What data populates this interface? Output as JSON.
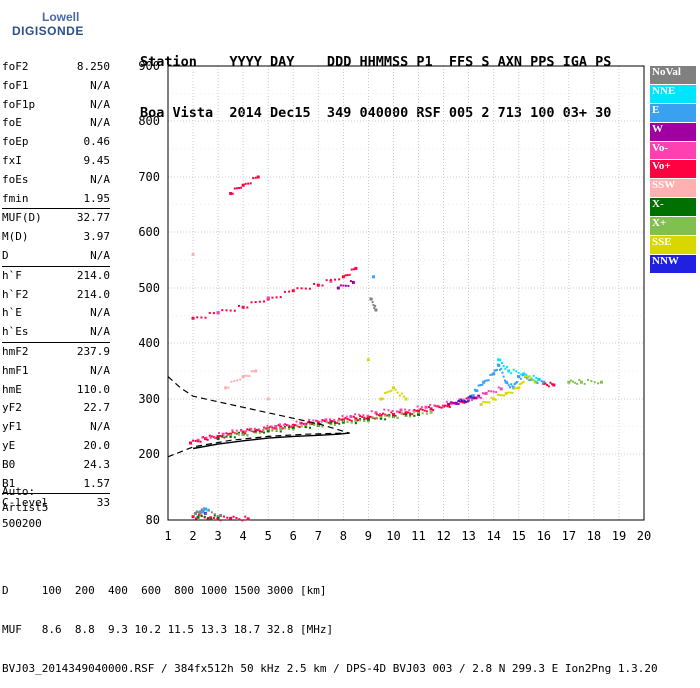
{
  "logo": {
    "line1": "Lowell",
    "line2": "DIGISONDE"
  },
  "header": {
    "line1": "Station    YYYY DAY    DDD HHMMSS P1  FFS S AXN PPS IGA PS",
    "line2": "Boa Vista  2014 Dec15  349 040000 RSF 005 2 713 100 03+ 30"
  },
  "params": {
    "group1": [
      {
        "label": "foF2",
        "value": "8.250"
      },
      {
        "label": "foF1",
        "value": "N/A"
      },
      {
        "label": "foF1p",
        "value": "N/A"
      },
      {
        "label": "foE",
        "value": "N/A"
      },
      {
        "label": "foEp",
        "value": "0.46"
      },
      {
        "label": "fxI",
        "value": "9.45"
      },
      {
        "label": "foEs",
        "value": "N/A"
      },
      {
        "label": "fmin",
        "value": "1.95"
      }
    ],
    "group2": [
      {
        "label": "MUF(D)",
        "value": "32.77"
      },
      {
        "label": "M(D)",
        "value": "3.97"
      },
      {
        "label": "D",
        "value": "N/A"
      }
    ],
    "group3": [
      {
        "label": "h`F",
        "value": "214.0"
      },
      {
        "label": "h`F2",
        "value": "214.0"
      },
      {
        "label": "h`E",
        "value": "N/A"
      },
      {
        "label": "h`Es",
        "value": "N/A"
      }
    ],
    "group4": [
      {
        "label": "hmF2",
        "value": "237.9"
      },
      {
        "label": "hmF1",
        "value": "N/A"
      },
      {
        "label": "hmE",
        "value": "110.0"
      },
      {
        "label": "yF2",
        "value": "22.7"
      },
      {
        "label": "yF1",
        "value": "N/A"
      },
      {
        "label": "yE",
        "value": "20.0"
      },
      {
        "label": "B0",
        "value": "24.3"
      },
      {
        "label": "B1",
        "value": "1.57"
      }
    ],
    "group5": [
      {
        "label": "C-level",
        "value": "33"
      }
    ]
  },
  "auto": {
    "line1": "Auto:",
    "line2": "Artist5",
    "line3": "500200"
  },
  "legend": [
    {
      "label": "NoVal",
      "color": "#808080"
    },
    {
      "label": "NNE",
      "color": "#00e5ff"
    },
    {
      "label": "E",
      "color": "#3aa0f0"
    },
    {
      "label": "W",
      "color": "#a000a0"
    },
    {
      "label": "Vo-",
      "color": "#ff40b0"
    },
    {
      "label": "Vo+",
      "color": "#ff0040"
    },
    {
      "label": "SSW",
      "color": "#ffb0b0"
    },
    {
      "label": "X-",
      "color": "#007000"
    },
    {
      "label": "X+",
      "color": "#80c050"
    },
    {
      "label": "SSE",
      "color": "#d8d800"
    },
    {
      "label": "NNW",
      "color": "#2020e0"
    }
  ],
  "footer": {
    "line1": "D     100  200  400  600  800 1000 1500 3000 [km]",
    "line2": "MUF   8.6  8.8  9.3 10.2 11.5 13.3 18.7 32.8 [MHz]",
    "line3": "BVJ03_2014349040000.RSF / 384fx512h 50 kHz 2.5 km / DPS-4D BVJ03 003 / 2.8 N 299.3 E Ion2Png 1.3.20"
  },
  "chart_data": {
    "type": "scatter",
    "xlabel": "",
    "ylabel": "",
    "xlim": [
      1,
      20
    ],
    "ylim": [
      80,
      900
    ],
    "x_ticks": [
      1,
      2,
      3,
      4,
      5,
      6,
      7,
      8,
      9,
      10,
      11,
      12,
      13,
      14,
      15,
      16,
      17,
      18,
      19,
      20
    ],
    "y_ticks": [
      80,
      200,
      300,
      400,
      500,
      600,
      700,
      800,
      900
    ],
    "y_ticks_labeled": [
      80,
      200,
      300,
      400,
      500,
      600,
      700,
      800,
      900
    ],
    "grid": true,
    "legend_position": "right",
    "series": [
      {
        "name": "Vo+",
        "color": "#ff0040",
        "points": [
          [
            1.9,
            220
          ],
          [
            2.5,
            228
          ],
          [
            3.0,
            232
          ],
          [
            3.5,
            236
          ],
          [
            4.0,
            240
          ],
          [
            4.5,
            243
          ],
          [
            5.0,
            246
          ],
          [
            5.5,
            249
          ],
          [
            6.0,
            252
          ],
          [
            6.5,
            254
          ],
          [
            7.0,
            257
          ],
          [
            7.5,
            259
          ],
          [
            8.0,
            262
          ],
          [
            8.5,
            264
          ],
          [
            9.0,
            267
          ],
          [
            9.5,
            270
          ],
          [
            10.0,
            272
          ],
          [
            10.5,
            275
          ],
          [
            11.0,
            278
          ],
          [
            11.5,
            282
          ],
          [
            12.0,
            287
          ],
          [
            12.5,
            292
          ],
          [
            13.0,
            298
          ],
          [
            2.0,
            445
          ],
          [
            3.0,
            455
          ],
          [
            4.0,
            465
          ],
          [
            5.0,
            480
          ],
          [
            6.0,
            495
          ],
          [
            7.0,
            505
          ],
          [
            8.0,
            520
          ],
          [
            8.5,
            535
          ],
          [
            3.5,
            670
          ],
          [
            4.0,
            685
          ],
          [
            4.6,
            700
          ],
          [
            2.0,
            86
          ],
          [
            2.7,
            84
          ],
          [
            3.5,
            83
          ],
          [
            4.2,
            82
          ],
          [
            16.0,
            328
          ],
          [
            16.4,
            325
          ]
        ]
      },
      {
        "name": "Vo-",
        "color": "#ff40b0",
        "points": [
          [
            2.2,
            225
          ],
          [
            3.2,
            236
          ],
          [
            4.3,
            245
          ],
          [
            5.3,
            250
          ],
          [
            6.3,
            256
          ],
          [
            7.3,
            262
          ],
          [
            8.3,
            268
          ],
          [
            9.3,
            275
          ],
          [
            10.3,
            280
          ],
          [
            11.3,
            285
          ],
          [
            12.3,
            292
          ],
          [
            13.3,
            302
          ],
          [
            13.7,
            310
          ],
          [
            14.3,
            318
          ],
          [
            3.0,
            455
          ],
          [
            5.0,
            482
          ],
          [
            7.5,
            512
          ]
        ]
      },
      {
        "name": "E",
        "color": "#3aa0f0",
        "points": [
          [
            13.0,
            300
          ],
          [
            13.3,
            315
          ],
          [
            13.6,
            330
          ],
          [
            14.0,
            345
          ],
          [
            14.2,
            360
          ],
          [
            14.5,
            330
          ],
          [
            14.8,
            320
          ],
          [
            15.0,
            340
          ],
          [
            15.5,
            335
          ],
          [
            16.0,
            330
          ],
          [
            9.2,
            520
          ],
          [
            2.3,
            95
          ],
          [
            2.5,
            100
          ]
        ]
      },
      {
        "name": "NNE",
        "color": "#00e5ff",
        "points": [
          [
            14.2,
            370
          ],
          [
            14.6,
            350
          ],
          [
            15.2,
            345
          ],
          [
            15.8,
            335
          ],
          [
            2.6,
            98
          ]
        ]
      },
      {
        "name": "SSE",
        "color": "#d8d800",
        "points": [
          [
            13.5,
            290
          ],
          [
            14.0,
            300
          ],
          [
            14.5,
            310
          ],
          [
            15.0,
            320
          ],
          [
            15.3,
            340
          ],
          [
            15.7,
            330
          ],
          [
            9.0,
            370
          ],
          [
            9.5,
            300
          ],
          [
            10.0,
            320
          ],
          [
            10.5,
            300
          ]
        ]
      },
      {
        "name": "X-",
        "color": "#007000",
        "points": [
          [
            3.0,
            228
          ],
          [
            4.0,
            236
          ],
          [
            5.0,
            242
          ],
          [
            6.0,
            248
          ],
          [
            7.0,
            252
          ],
          [
            8.0,
            258
          ],
          [
            9.0,
            262
          ],
          [
            10.0,
            268
          ],
          [
            11.0,
            272
          ],
          [
            2.2,
            85
          ],
          [
            3.0,
            84
          ]
        ]
      },
      {
        "name": "X+",
        "color": "#80c050",
        "points": [
          [
            3.5,
            233
          ],
          [
            4.5,
            240
          ],
          [
            5.5,
            246
          ],
          [
            6.5,
            250
          ],
          [
            7.5,
            255
          ],
          [
            8.5,
            260
          ],
          [
            9.5,
            266
          ],
          [
            10.5,
            270
          ],
          [
            11.5,
            276
          ],
          [
            17.0,
            330
          ],
          [
            17.5,
            330
          ],
          [
            18.3,
            330
          ]
        ]
      },
      {
        "name": "W",
        "color": "#a000a0",
        "points": [
          [
            12.2,
            290
          ],
          [
            12.8,
            296
          ],
          [
            13.4,
            305
          ],
          [
            7.8,
            500
          ],
          [
            8.4,
            510
          ]
        ]
      },
      {
        "name": "NNW",
        "color": "#2020e0",
        "points": [
          [
            12.5,
            292
          ],
          [
            13.2,
            302
          ],
          [
            2.5,
            92
          ]
        ]
      },
      {
        "name": "SSW",
        "color": "#ffb0b0",
        "points": [
          [
            2.0,
            560
          ],
          [
            3.3,
            320
          ],
          [
            4.0,
            340
          ],
          [
            4.5,
            350
          ],
          [
            5.0,
            300
          ]
        ]
      },
      {
        "name": "NoVal",
        "color": "#808080",
        "points": [
          [
            2.1,
            92
          ],
          [
            2.4,
            96
          ],
          [
            3.1,
            88
          ],
          [
            9.1,
            480
          ],
          [
            9.3,
            460
          ]
        ]
      }
    ],
    "profile_curve": [
      [
        2.0,
        210
      ],
      [
        3.0,
        218
      ],
      [
        4.0,
        224
      ],
      [
        5.0,
        229
      ],
      [
        6.0,
        232
      ],
      [
        7.0,
        234
      ],
      [
        7.8,
        236
      ],
      [
        8.25,
        238
      ]
    ],
    "extrapolated_curve": [
      [
        1.0,
        195
      ],
      [
        2.0,
        213
      ],
      [
        3.5,
        225
      ],
      [
        5.0,
        232
      ],
      [
        6.5,
        236
      ],
      [
        8.0,
        238
      ],
      [
        8.25,
        238
      ]
    ],
    "topside_dashed": [
      [
        1.0,
        340
      ],
      [
        1.5,
        320
      ],
      [
        2.0,
        305
      ],
      [
        3.0,
        295
      ],
      [
        4.0,
        285
      ],
      [
        5.0,
        275
      ],
      [
        6.0,
        265
      ],
      [
        7.0,
        255
      ],
      [
        8.25,
        238
      ]
    ]
  }
}
